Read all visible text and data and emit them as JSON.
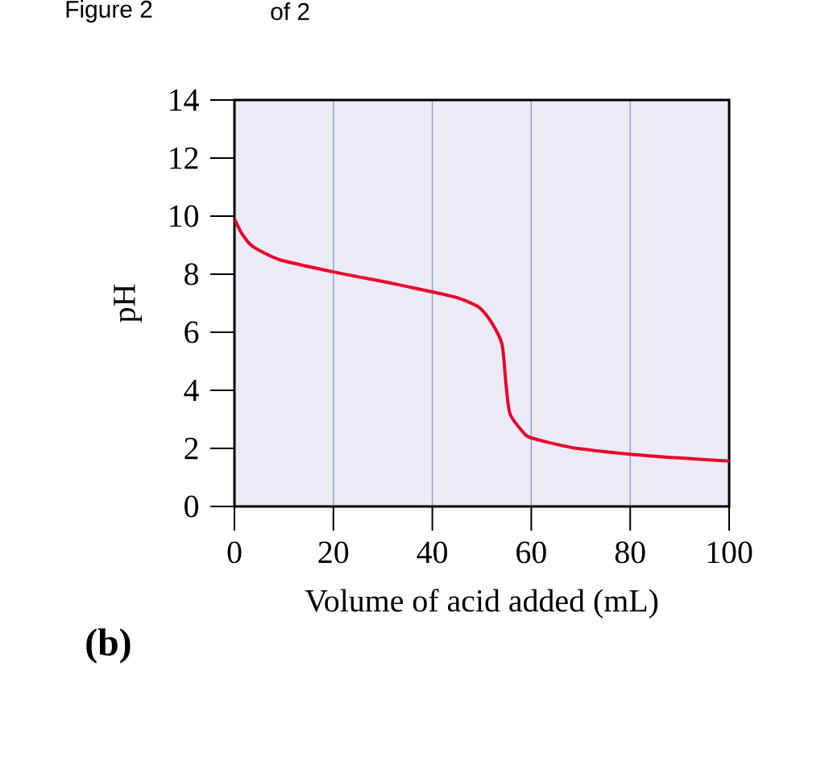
{
  "chart_data": {
    "type": "line",
    "xlabel": "Volume of acid added (mL)",
    "ylabel": "pH",
    "annotations": [
      "Figure 2",
      "of 2",
      "(b)"
    ],
    "xlim": [
      0,
      100
    ],
    "ylim": [
      0,
      14
    ],
    "xticks": [
      0,
      20,
      40,
      60,
      80,
      100
    ],
    "yticks": [
      0,
      2,
      4,
      6,
      8,
      10,
      12,
      14
    ],
    "grid": "x",
    "marker": "none",
    "line_style": "solid",
    "series": [
      {
        "color": "#e8002d",
        "x": [
          0,
          1.5,
          3.6,
          9.1,
          20,
          30.8,
          40,
          45.4,
          49.5,
          52,
          54.1,
          54.9,
          55.7,
          58.5,
          60,
          68.2,
          80,
          89.9,
          100
        ],
        "values": [
          9.9,
          9.4,
          8.97,
          8.5,
          8.08,
          7.72,
          7.39,
          7.17,
          6.85,
          6.33,
          5.58,
          4.2,
          3.19,
          2.53,
          2.36,
          2.03,
          1.8,
          1.67,
          1.56
        ]
      }
    ]
  }
}
